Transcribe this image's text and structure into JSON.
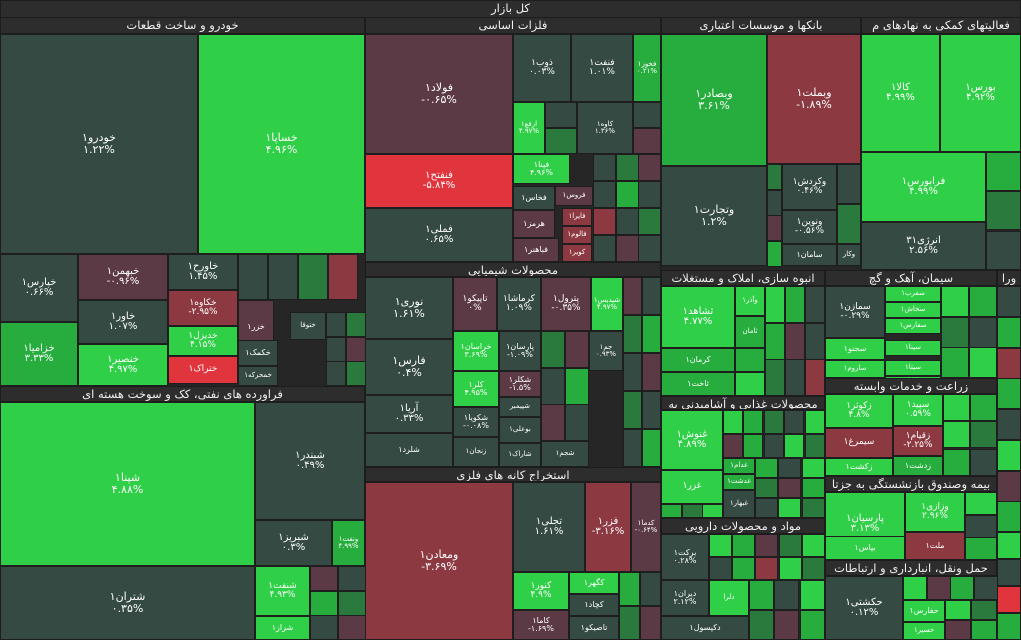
{
  "title": "کل بازار",
  "colors": {
    "g3": "#2fcf47",
    "g2": "#26ad3d",
    "g1": "#2a7a3e",
    "n": "#344a43",
    "r1": "#5b3a45",
    "r2": "#8c3942",
    "r3": "#e0353d"
  },
  "sectors": [
    {
      "title": "خودرو و ساخت قطعات"
    },
    {
      "title": "فلزات اساسی"
    },
    {
      "title": "بانکها و موسسات اعتباری"
    },
    {
      "title": "فعالیتهای کمکی به نهادهای م"
    },
    {
      "title": "فراورده های نفتی، کک و سوخت هسته ای"
    },
    {
      "title": "محصولات شیمیایی"
    },
    {
      "title": "انبوه سازی، املاک و مستغلات"
    },
    {
      "title": "سیمان، آهک و گچ"
    },
    {
      "title": "زراعت و خدمات وابسته"
    },
    {
      "title": "استخراج کانه های فلزی"
    },
    {
      "title": "محصولات غذایی و آشامیدنی به"
    },
    {
      "title": "بیمه وصندوق بازنشستگی به جزتا"
    },
    {
      "title": "مواد و محصولات دارویی"
    },
    {
      "title": "حمل ونقل، انبارداری و ارتباطات"
    },
    {
      "title": "ورا"
    }
  ],
  "tiles": [
    {
      "name": "خودرو۱",
      "pct": "۱.۲۲%"
    },
    {
      "name": "خساپا۱",
      "pct": "۴.۹۶%"
    },
    {
      "name": "خپارس۱",
      "pct": "۰.۶۶%"
    },
    {
      "name": "خبهمن۱",
      "pct": "-۰.۹۶%"
    },
    {
      "name": "خاورح۱",
      "pct": "۱.۴۵%"
    },
    {
      "name": "خکاوه۱",
      "pct": "-۲.۹۵%"
    },
    {
      "name": "خاور۱",
      "pct": "۱.۰۷%"
    },
    {
      "name": "خدیزل۱",
      "pct": "۴.۱۵%"
    },
    {
      "name": "خزامیا۱",
      "pct": "۳.۳۳%"
    },
    {
      "name": "خنصیر۱",
      "pct": "۴.۹۷%"
    },
    {
      "name": "ختراک۱",
      "pct": ""
    },
    {
      "name": "خزر۱",
      "pct": ""
    },
    {
      "name": "خکمک۱",
      "pct": ""
    },
    {
      "name": "خمحرکه۱",
      "pct": ""
    },
    {
      "name": "ختوقا",
      "pct": ""
    },
    {
      "name": "شپنا۱",
      "pct": "۴.۸۸%"
    },
    {
      "name": "شبندر۱",
      "pct": "۰.۴۹%"
    },
    {
      "name": "شبریز۱",
      "pct": "۰.۳%"
    },
    {
      "name": "شتران۱",
      "pct": "۰.۳۵%"
    },
    {
      "name": "شنفت۱",
      "pct": "۴.۹۳%"
    },
    {
      "name": "شراز۱",
      "pct": ""
    },
    {
      "name": "ونفت۱",
      "pct": "۴.۹۹%"
    },
    {
      "name": "فولاد۱",
      "pct": "-۰.۶۵%"
    },
    {
      "name": "فنفتح۱",
      "pct": "-۵.۸۴%"
    },
    {
      "name": "فملی۱",
      "pct": "۰.۶۵%"
    },
    {
      "name": "ذوب۱",
      "pct": "۰.۰۳%"
    },
    {
      "name": "فنفت۱",
      "pct": "۱.۰۱%"
    },
    {
      "name": "فخوز۱",
      "pct": "۰.۲۱%"
    },
    {
      "name": "ارفع۱",
      "pct": "۴.۹۷%"
    },
    {
      "name": "کاوه۱",
      "pct": "۱.۳۶%"
    },
    {
      "name": "فپنا۱",
      "pct": "۴.۹۶%"
    },
    {
      "name": "فخاس۱",
      "pct": ""
    },
    {
      "name": "فروس۱",
      "pct": ""
    },
    {
      "name": "هرمز۱",
      "pct": ""
    },
    {
      "name": "فایرا۱",
      "pct": ""
    },
    {
      "name": "فالوم۱",
      "pct": ""
    },
    {
      "name": "فباهنر۱",
      "pct": ""
    },
    {
      "name": "کویر۱",
      "pct": ""
    },
    {
      "name": "وبصادر۱",
      "pct": "۳.۶۱%"
    },
    {
      "name": "وبملت۱",
      "pct": "-۱.۸۹%"
    },
    {
      "name": "وتجارت۱",
      "pct": "۱.۲%"
    },
    {
      "name": "وکردش۱",
      "pct": "۰.۴۶%"
    },
    {
      "name": "ونوین۱",
      "pct": "-۰.۵۶%"
    },
    {
      "name": "سامان۱",
      "pct": ""
    },
    {
      "name": "وکار",
      "pct": ""
    },
    {
      "name": "بورس۱",
      "pct": "۴.۹۲%"
    },
    {
      "name": "کالا۱",
      "pct": "۴.۹۹%"
    },
    {
      "name": "فرابورس۱",
      "pct": "۴.۹۹%"
    },
    {
      "name": "انرژی۳۱",
      "pct": "۲.۵۶%"
    },
    {
      "name": "نوری۱",
      "pct": "۱.۶۱%"
    },
    {
      "name": "تاپیکو۱",
      "pct": "۰%"
    },
    {
      "name": "کرماشا۱",
      "pct": "۱.۰۹%"
    },
    {
      "name": "پترول۱",
      "pct": "-۰.۳۵%"
    },
    {
      "name": "شپدیس۱",
      "pct": "۴.۹۷%"
    },
    {
      "name": "فارس۱",
      "pct": "۰.۴%"
    },
    {
      "name": "خراسان۱",
      "pct": "۳.۶۹%"
    },
    {
      "name": "پارسان۱",
      "pct": "-۱.۰۹%"
    },
    {
      "name": "جم۱",
      "pct": "۰.۹۳%"
    },
    {
      "name": "آریا۱",
      "pct": "۰.۳۳%"
    },
    {
      "name": "کلر۱",
      "pct": "۴.۹۵%"
    },
    {
      "name": "شکلر۱",
      "pct": "-۱.۵%"
    },
    {
      "name": "شکویا۱",
      "pct": "-۰.۰۸%"
    },
    {
      "name": "شپیمبر",
      "pct": ""
    },
    {
      "name": "شلرد۱",
      "pct": ""
    },
    {
      "name": "بوعلی۱",
      "pct": ""
    },
    {
      "name": "زنجان۱",
      "pct": ""
    },
    {
      "name": "شاراک۱",
      "pct": ""
    },
    {
      "name": "شجم۱",
      "pct": ""
    },
    {
      "name": "ومعادن۱",
      "pct": "-۳.۶۹%"
    },
    {
      "name": "تجلی۱",
      "pct": "۱.۶۱%"
    },
    {
      "name": "فزر۱",
      "pct": "-۳.۱۶%"
    },
    {
      "name": "کدما۱",
      "pct": "-۰.۶۴%"
    },
    {
      "name": "کنور۱",
      "pct": "۴.۹%"
    },
    {
      "name": "کگهر۱",
      "pct": ""
    },
    {
      "name": "کچاد۱",
      "pct": ""
    },
    {
      "name": "کاما۱",
      "pct": "-۱.۶۹%"
    },
    {
      "name": "تاصیکو۱",
      "pct": ""
    },
    {
      "name": "ثشاهد۱",
      "pct": "۴.۷۷%"
    },
    {
      "name": "وآذر۱",
      "pct": ""
    },
    {
      "name": "ثامان",
      "pct": ""
    },
    {
      "name": "کرمان۱",
      "pct": ""
    },
    {
      "name": "ثاخت۱",
      "pct": ""
    },
    {
      "name": "سمازن۱",
      "pct": "-۰.۲۹%"
    },
    {
      "name": "سفرب۱",
      "pct": ""
    },
    {
      "name": "سخاش۱",
      "pct": ""
    },
    {
      "name": "سفارس۱",
      "pct": ""
    },
    {
      "name": "سپنا۱",
      "pct": ""
    },
    {
      "name": "سیتا۱",
      "pct": ""
    },
    {
      "name": "سجنو۱",
      "pct": ""
    },
    {
      "name": "ساروم۱",
      "pct": ""
    },
    {
      "name": "سنیر۱",
      "pct": ""
    },
    {
      "name": "زکوثر۱",
      "pct": "۴.۸%"
    },
    {
      "name": "سیمرغ۱",
      "pct": ""
    },
    {
      "name": "زکشت۱",
      "pct": ""
    },
    {
      "name": "سپید۱",
      "pct": "۰.۵۹%"
    },
    {
      "name": "زقیام۱",
      "pct": "-۲.۲۵%"
    },
    {
      "name": "زدشت۱",
      "pct": ""
    },
    {
      "name": "غنوش۱",
      "pct": "۴.۸۹%"
    },
    {
      "name": "غزر۱",
      "pct": ""
    },
    {
      "name": "غدام۱",
      "pct": ""
    },
    {
      "name": "غدشت۱",
      "pct": ""
    },
    {
      "name": "غبهار۱",
      "pct": ""
    },
    {
      "name": "پارسیان۱",
      "pct": "۳.۱۳%"
    },
    {
      "name": "وزازی۱",
      "pct": "۲.۹۶%"
    },
    {
      "name": "بپاس۱",
      "pct": ""
    },
    {
      "name": "ملت۱",
      "pct": ""
    },
    {
      "name": "برکت۱",
      "pct": "۰.۲۸%"
    },
    {
      "name": "دیران۱",
      "pct": "۲.۱۲%"
    },
    {
      "name": "دلرا",
      "pct": ""
    },
    {
      "name": "دکپسول۱",
      "pct": ""
    },
    {
      "name": "حکشتی۱",
      "pct": "۰.۱۲%"
    },
    {
      "name": "حفارس۱",
      "pct": ""
    },
    {
      "name": "حسیر۱",
      "pct": ""
    }
  ]
}
